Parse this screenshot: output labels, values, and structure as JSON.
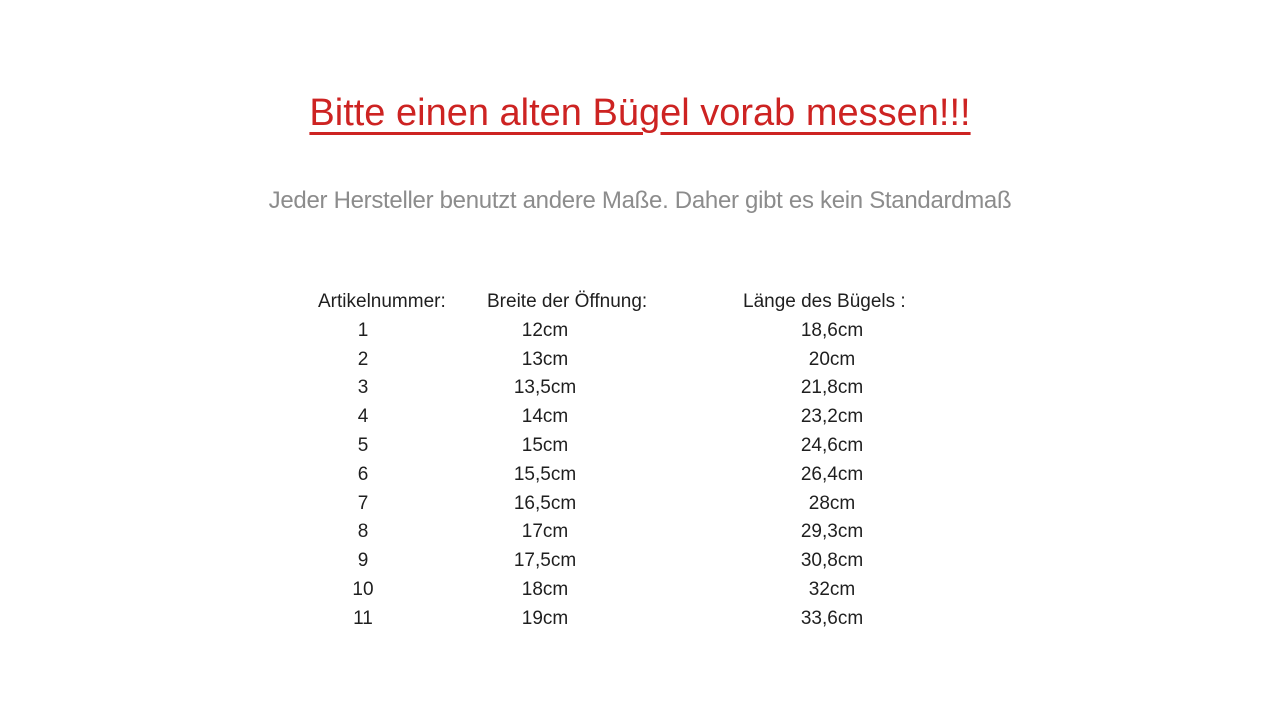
{
  "title": {
    "text": "Bitte einen alten Bügel vorab messen!!!",
    "color": "#cd2322"
  },
  "subtitle": {
    "text": "Jeder Hersteller benutzt andere Maße. Daher gibt es kein Standardmaß",
    "color": "#8c8c8c"
  },
  "table": {
    "headers": {
      "article_number": "Artikelnummer:",
      "opening_width": "Breite der Öffnung:",
      "hanger_length": "Länge des Bügels :"
    },
    "rows": [
      {
        "article_number": "1",
        "opening_width": "12cm",
        "hanger_length": "18,6cm"
      },
      {
        "article_number": "2",
        "opening_width": "13cm",
        "hanger_length": "20cm"
      },
      {
        "article_number": "3",
        "opening_width": "13,5cm",
        "hanger_length": "21,8cm"
      },
      {
        "article_number": "4",
        "opening_width": "14cm",
        "hanger_length": "23,2cm"
      },
      {
        "article_number": "5",
        "opening_width": "15cm",
        "hanger_length": "24,6cm"
      },
      {
        "article_number": "6",
        "opening_width": "15,5cm",
        "hanger_length": "26,4cm"
      },
      {
        "article_number": "7",
        "opening_width": "16,5cm",
        "hanger_length": "28cm"
      },
      {
        "article_number": "8",
        "opening_width": "17cm",
        "hanger_length": "29,3cm"
      },
      {
        "article_number": "9",
        "opening_width": "17,5cm",
        "hanger_length": "30,8cm"
      },
      {
        "article_number": "10",
        "opening_width": "18cm",
        "hanger_length": "32cm"
      },
      {
        "article_number": "11",
        "opening_width": "19cm",
        "hanger_length": "33,6cm"
      }
    ]
  }
}
